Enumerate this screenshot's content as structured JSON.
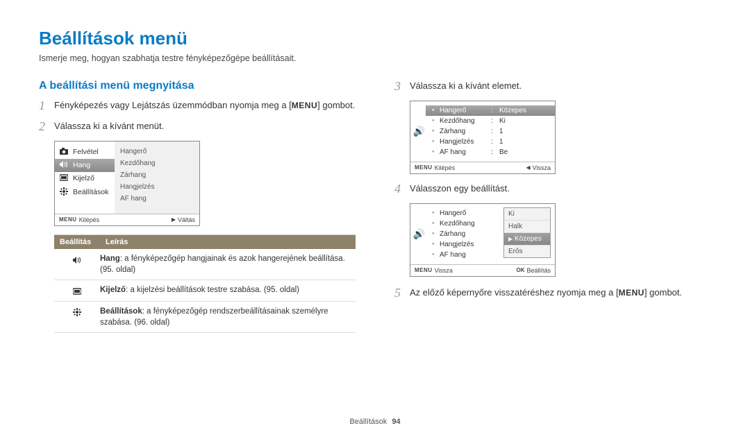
{
  "page": {
    "title": "Beállítások menü",
    "subtitle": "Ismerje meg, hogyan szabhatja testre fényképezőgépe beállításait.",
    "section_footer_label": "Beállítások",
    "section_footer_page": "94"
  },
  "left": {
    "h2": "A beállítási menü megnyitása",
    "step1_num": "1",
    "step1_a": "Fényképezés vagy Lejátszás üzemmódban nyomja meg a [",
    "step1_menu": "MENU",
    "step1_b": "] gombot.",
    "step2_num": "2",
    "step2": "Válassza ki a kívánt menüt.",
    "screen1": {
      "left_items": [
        {
          "icon": "camera",
          "label": "Felvétel",
          "sel": false
        },
        {
          "icon": "sound",
          "label": "Hang",
          "sel": true
        },
        {
          "icon": "display",
          "label": "Kijelző",
          "sel": false
        },
        {
          "icon": "gear",
          "label": "Beállítások",
          "sel": false
        }
      ],
      "right_items": [
        "Hangerő",
        "Kezdőhang",
        "Zárhang",
        "Hangjelzés",
        "AF hang"
      ],
      "footer_left_label": "MENU",
      "footer_left_text": "Kilépés",
      "footer_right_icon": "▶",
      "footer_right_text": "Váltás"
    },
    "table": {
      "col1": "Beállítás",
      "col2": "Leírás",
      "rows": [
        {
          "icon": "sound",
          "bold": "Hang",
          "text": ": a fényképezőgép hangjainak és azok hangerejének beállítása. (95. oldal)"
        },
        {
          "icon": "display",
          "bold": "Kijelző",
          "text": ": a kijelzési beállítások testre szabása. (95. oldal)"
        },
        {
          "icon": "gear",
          "bold": "Beállítások",
          "text": ": a fényképezőgép rendszerbeállításainak személyre szabása. (96. oldal)"
        }
      ]
    }
  },
  "right": {
    "step3_num": "3",
    "step3": "Válassza ki a kívánt elemet.",
    "screen3": {
      "rows": [
        {
          "label": "Hangerő",
          "val": "Közepes",
          "sel": true
        },
        {
          "label": "Kezdőhang",
          "val": "Ki",
          "sel": false
        },
        {
          "label": "Zárhang",
          "val": "1",
          "sel": false
        },
        {
          "label": "Hangjelzés",
          "val": "1",
          "sel": false
        },
        {
          "label": "AF hang",
          "val": "Be",
          "sel": false
        }
      ],
      "footer_left_label": "MENU",
      "footer_left_text": "Kilépés",
      "footer_right_icon": "◀",
      "footer_right_text": "Vissza"
    },
    "step4_num": "4",
    "step4": "Válasszon egy beállítást.",
    "screen4": {
      "rows": [
        {
          "label": "Hangerő"
        },
        {
          "label": "Kezdőhang"
        },
        {
          "label": "Zárhang"
        },
        {
          "label": "Hangjelzés"
        },
        {
          "label": "AF hang"
        }
      ],
      "popup": [
        {
          "label": "Ki",
          "sel": false
        },
        {
          "label": "Halk",
          "sel": false
        },
        {
          "label": "Közepes",
          "sel": true
        },
        {
          "label": "Erős",
          "sel": false
        }
      ],
      "footer_left_label": "MENU",
      "footer_left_text": "Vissza",
      "footer_right_label": "OK",
      "footer_right_text": "Beállítás"
    },
    "step5_num": "5",
    "step5_a": "Az előző képernyőre visszatéréshez nyomja meg a [",
    "step5_menu": "MENU",
    "step5_b": "] gombot."
  },
  "icons": {
    "camera": "📷",
    "sound": "🔊",
    "display": "▭",
    "gear": "✿"
  }
}
